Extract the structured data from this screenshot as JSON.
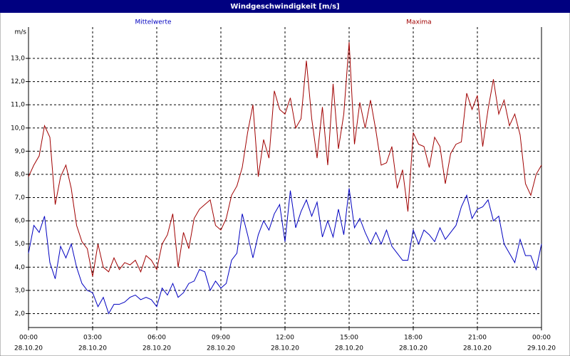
{
  "chart_data": {
    "type": "line",
    "title": "Windgeschwindigkeit [m/s]",
    "ylabel": "m/s",
    "x": [
      0,
      0.25,
      0.5,
      0.75,
      1,
      1.25,
      1.5,
      1.75,
      2,
      2.25,
      2.5,
      2.75,
      3,
      3.25,
      3.5,
      3.75,
      4,
      4.25,
      4.5,
      4.75,
      5,
      5.25,
      5.5,
      5.75,
      6,
      6.25,
      6.5,
      6.75,
      7,
      7.25,
      7.5,
      7.75,
      8,
      8.25,
      8.5,
      8.75,
      9,
      9.25,
      9.5,
      9.75,
      10,
      10.25,
      10.5,
      10.75,
      11,
      11.25,
      11.5,
      11.75,
      12,
      12.25,
      12.5,
      12.75,
      13,
      13.25,
      13.5,
      13.75,
      14,
      14.25,
      14.5,
      14.75,
      15,
      15.25,
      15.5,
      15.75,
      16,
      16.25,
      16.5,
      16.75,
      17,
      17.25,
      17.5,
      17.75,
      18,
      18.25,
      18.5,
      18.75,
      19,
      19.25,
      19.5,
      19.75,
      20,
      20.25,
      20.5,
      20.75,
      21,
      21.25,
      21.5,
      21.75,
      22,
      22.25,
      22.5,
      22.75,
      23,
      23.25,
      23.5,
      23.75,
      24
    ],
    "series": [
      {
        "name": "Mittelwerte",
        "color": "#0000c0",
        "values": [
          4.6,
          5.8,
          5.5,
          6.2,
          4.2,
          3.5,
          4.9,
          4.4,
          5.0,
          4.0,
          3.3,
          3.0,
          2.9,
          2.3,
          2.7,
          2.0,
          2.4,
          2.4,
          2.5,
          2.7,
          2.8,
          2.6,
          2.7,
          2.6,
          2.3,
          3.1,
          2.8,
          3.3,
          2.7,
          2.9,
          3.3,
          3.4,
          3.9,
          3.8,
          3.0,
          3.4,
          3.1,
          3.3,
          4.3,
          4.6,
          6.3,
          5.4,
          4.4,
          5.4,
          6.0,
          5.6,
          6.3,
          6.7,
          5.1,
          7.3,
          5.7,
          6.4,
          6.9,
          6.2,
          6.8,
          5.3,
          6.0,
          5.3,
          6.5,
          5.4,
          7.4,
          5.7,
          6.1,
          5.5,
          5.0,
          5.5,
          5.0,
          5.6,
          4.9,
          4.6,
          4.3,
          4.3,
          5.6,
          5.0,
          5.6,
          5.4,
          5.1,
          5.7,
          5.2,
          5.5,
          5.8,
          6.6,
          7.1,
          6.1,
          6.5,
          6.6,
          6.9,
          6.0,
          6.2,
          5.0,
          4.6,
          4.2,
          5.2,
          4.5,
          4.5,
          3.9,
          5.0
        ]
      },
      {
        "name": "Maxima",
        "color": "#a00000",
        "values": [
          7.9,
          8.4,
          8.8,
          10.1,
          9.6,
          6.7,
          7.9,
          8.4,
          7.4,
          5.8,
          5.1,
          4.8,
          3.6,
          5.0,
          4.0,
          3.8,
          4.4,
          3.9,
          4.2,
          4.1,
          4.3,
          3.8,
          4.5,
          4.3,
          3.9,
          5.0,
          5.4,
          6.3,
          4.0,
          5.5,
          4.8,
          6.1,
          6.5,
          6.7,
          6.9,
          5.8,
          5.6,
          6.1,
          7.1,
          7.5,
          8.3,
          9.8,
          11.0,
          7.9,
          9.5,
          8.7,
          11.6,
          10.8,
          10.6,
          11.3,
          10.0,
          10.4,
          12.9,
          10.4,
          8.7,
          10.9,
          8.4,
          11.9,
          9.1,
          10.6,
          13.7,
          9.3,
          11.1,
          10.0,
          11.2,
          9.9,
          8.4,
          8.5,
          9.2,
          7.4,
          8.2,
          6.4,
          9.8,
          9.3,
          9.2,
          8.3,
          9.6,
          9.2,
          7.6,
          8.9,
          9.3,
          9.4,
          11.5,
          10.8,
          11.4,
          9.2,
          10.8,
          12.1,
          10.6,
          11.2,
          10.1,
          10.6,
          9.7,
          7.6,
          7.1,
          8.0,
          8.4
        ]
      }
    ],
    "xlim": [
      0,
      24
    ],
    "xticks": [
      {
        "value": 0,
        "label": "00:00",
        "sublabel": "28.10.20"
      },
      {
        "value": 3,
        "label": "03:00",
        "sublabel": "28.10.20"
      },
      {
        "value": 6,
        "label": "06:00",
        "sublabel": "28.10.20"
      },
      {
        "value": 9,
        "label": "09:00",
        "sublabel": "28.10.20"
      },
      {
        "value": 12,
        "label": "12:00",
        "sublabel": "28.10.20"
      },
      {
        "value": 15,
        "label": "15:00",
        "sublabel": "28.10.20"
      },
      {
        "value": 18,
        "label": "18:00",
        "sublabel": "28.10.20"
      },
      {
        "value": 21,
        "label": "21:00",
        "sublabel": "28.10.20"
      },
      {
        "value": 24,
        "label": "00:00",
        "sublabel": "29.10.20"
      }
    ],
    "ylim": [
      1.4,
      14.35
    ],
    "yticks": [
      {
        "value": 2,
        "label": "2,0"
      },
      {
        "value": 3,
        "label": "3,0"
      },
      {
        "value": 4,
        "label": "4,0"
      },
      {
        "value": 5,
        "label": "5,0"
      },
      {
        "value": 6,
        "label": "6,0"
      },
      {
        "value": 7,
        "label": "7,0"
      },
      {
        "value": 8,
        "label": "8,0"
      },
      {
        "value": 9,
        "label": "9,0"
      },
      {
        "value": 10,
        "label": "10,0"
      },
      {
        "value": 11,
        "label": "11,0"
      },
      {
        "value": 12,
        "label": "12,0"
      },
      {
        "value": 13,
        "label": "13,0"
      }
    ],
    "grid": true
  }
}
